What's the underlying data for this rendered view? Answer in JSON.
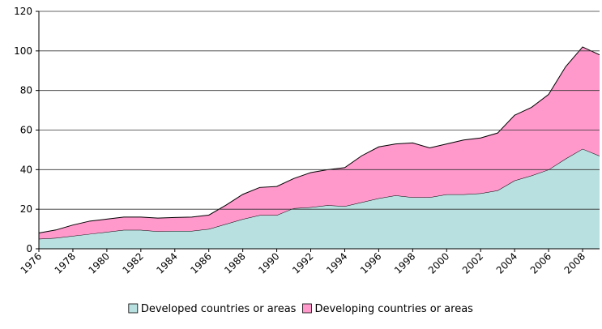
{
  "chart_data": {
    "type": "stacked_area",
    "x": [
      1976,
      1977,
      1978,
      1979,
      1980,
      1981,
      1982,
      1983,
      1984,
      1985,
      1986,
      1987,
      1988,
      1989,
      1990,
      1991,
      1992,
      1993,
      1994,
      1995,
      1996,
      1997,
      1998,
      1999,
      2000,
      2001,
      2002,
      2003,
      2004,
      2005,
      2006,
      2007,
      2008,
      2009
    ],
    "series": [
      {
        "name": "Developed countries or areas",
        "color": "#b9e0e0",
        "values": [
          5,
          5.5,
          6.5,
          7.5,
          8.5,
          9.5,
          9.5,
          8.8,
          9,
          9,
          10,
          12.5,
          15,
          17,
          17,
          20.5,
          21,
          22,
          21.5,
          23.5,
          25.5,
          27,
          26,
          26,
          27.5,
          27.5,
          28,
          29.5,
          34.5,
          37,
          40,
          45.5,
          50.5,
          47
        ]
      },
      {
        "name": "Developing countries or areas",
        "color": "#ff99cc",
        "values": [
          3,
          4,
          5.5,
          6.5,
          6.5,
          6.5,
          6.5,
          6.7,
          6.8,
          7,
          7,
          9.5,
          12.5,
          14,
          14.5,
          15,
          17.5,
          18,
          19.5,
          23.5,
          26,
          26,
          27.5,
          25,
          25.5,
          27.5,
          28,
          29,
          33,
          34.5,
          38,
          46.5,
          51.5,
          51
        ]
      }
    ],
    "xlim": [
      1976,
      2009
    ],
    "xticks": [
      1976,
      1978,
      1980,
      1982,
      1984,
      1986,
      1988,
      1990,
      1992,
      1994,
      1996,
      1998,
      2000,
      2002,
      2004,
      2006,
      2008
    ],
    "ylim": [
      0,
      120
    ],
    "yticks": [
      0,
      20,
      40,
      60,
      80,
      100,
      120
    ],
    "grid": true,
    "legend": "bottom"
  }
}
